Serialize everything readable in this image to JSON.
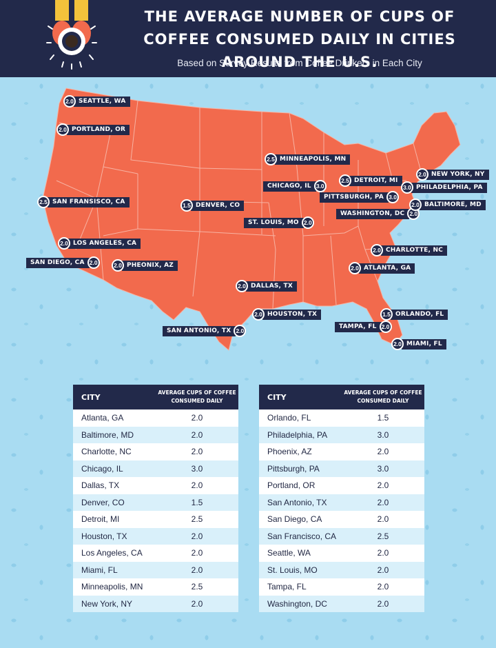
{
  "header": {
    "title": "The Average Number of Cups of Coffee Consumed Daily in Cities Around the U.S.",
    "subtitle": "Based on Survey Results from Coffee Drinkers in Each City"
  },
  "colors": {
    "navy": "#22294a",
    "map": "#f26a4d",
    "sky": "#a9dcf2",
    "row_alt": "#d9f0fa"
  },
  "map": {
    "pins": [
      {
        "label": "Seattle, WA",
        "value": "2.0"
      },
      {
        "label": "Portland, OR",
        "value": "2.0"
      },
      {
        "label": "San Fransisco, CA",
        "value": "2.5"
      },
      {
        "label": "Los Angeles, CA",
        "value": "2.0"
      },
      {
        "label": "San Diego, CA",
        "value": "2.0"
      },
      {
        "label": "Pheonix, AZ",
        "value": "2.0"
      },
      {
        "label": "Denver, CO",
        "value": "1.5"
      },
      {
        "label": "Minneapolis, MN",
        "value": "2.5"
      },
      {
        "label": "Chicago, IL",
        "value": "3.0"
      },
      {
        "label": "St. Louis, MO",
        "value": "2.0"
      },
      {
        "label": "Dallas, TX",
        "value": "2.0"
      },
      {
        "label": "San Antonio, TX",
        "value": "2.0"
      },
      {
        "label": "Houston, TX",
        "value": "2.0"
      },
      {
        "label": "Detroit, MI",
        "value": "2.5"
      },
      {
        "label": "Pittsburgh, PA",
        "value": "3.0"
      },
      {
        "label": "Washington, DC",
        "value": "2.0"
      },
      {
        "label": "New York, NY",
        "value": "2.0"
      },
      {
        "label": "Philadelphia, PA",
        "value": "3.0"
      },
      {
        "label": "Baltimore, MD",
        "value": "2.0"
      },
      {
        "label": "Charlotte, NC",
        "value": "2.0"
      },
      {
        "label": "Atlanta, GA",
        "value": "2.0"
      },
      {
        "label": "Orlando, FL",
        "value": "1.5"
      },
      {
        "label": "Tampa, FL",
        "value": "2.0"
      },
      {
        "label": "Miami, FL",
        "value": "2.0"
      }
    ]
  },
  "tables": {
    "col_city": "City",
    "col_cups": "Average Cups of Coffee Consumed Daily",
    "left": [
      {
        "city": "Atlanta, GA",
        "cups": "2.0"
      },
      {
        "city": "Baltimore, MD",
        "cups": "2.0"
      },
      {
        "city": "Charlotte, NC",
        "cups": "2.0"
      },
      {
        "city": "Chicago, IL",
        "cups": "3.0"
      },
      {
        "city": "Dallas, TX",
        "cups": "2.0"
      },
      {
        "city": "Denver, CO",
        "cups": "1.5"
      },
      {
        "city": "Detroit, MI",
        "cups": "2.5"
      },
      {
        "city": "Houston, TX",
        "cups": "2.0"
      },
      {
        "city": "Los Angeles, CA",
        "cups": "2.0"
      },
      {
        "city": "Miami, FL",
        "cups": "2.0"
      },
      {
        "city": "Minneapolis, MN",
        "cups": "2.5"
      },
      {
        "city": "New York, NY",
        "cups": "2.0"
      }
    ],
    "right": [
      {
        "city": "Orlando, FL",
        "cups": "1.5"
      },
      {
        "city": "Philadelphia, PA",
        "cups": "3.0"
      },
      {
        "city": "Phoenix, AZ",
        "cups": "2.0"
      },
      {
        "city": "Pittsburgh, PA",
        "cups": "3.0"
      },
      {
        "city": "Portland, OR",
        "cups": "2.0"
      },
      {
        "city": "San Antonio, TX",
        "cups": "2.0"
      },
      {
        "city": "San Diego, CA",
        "cups": "2.0"
      },
      {
        "city": "San Francisco, CA",
        "cups": "2.5"
      },
      {
        "city": "Seattle, WA",
        "cups": "2.0"
      },
      {
        "city": "St. Louis, MO",
        "cups": "2.0"
      },
      {
        "city": "Tampa, FL",
        "cups": "2.0"
      },
      {
        "city": "Washington, DC",
        "cups": "2.0"
      }
    ]
  }
}
